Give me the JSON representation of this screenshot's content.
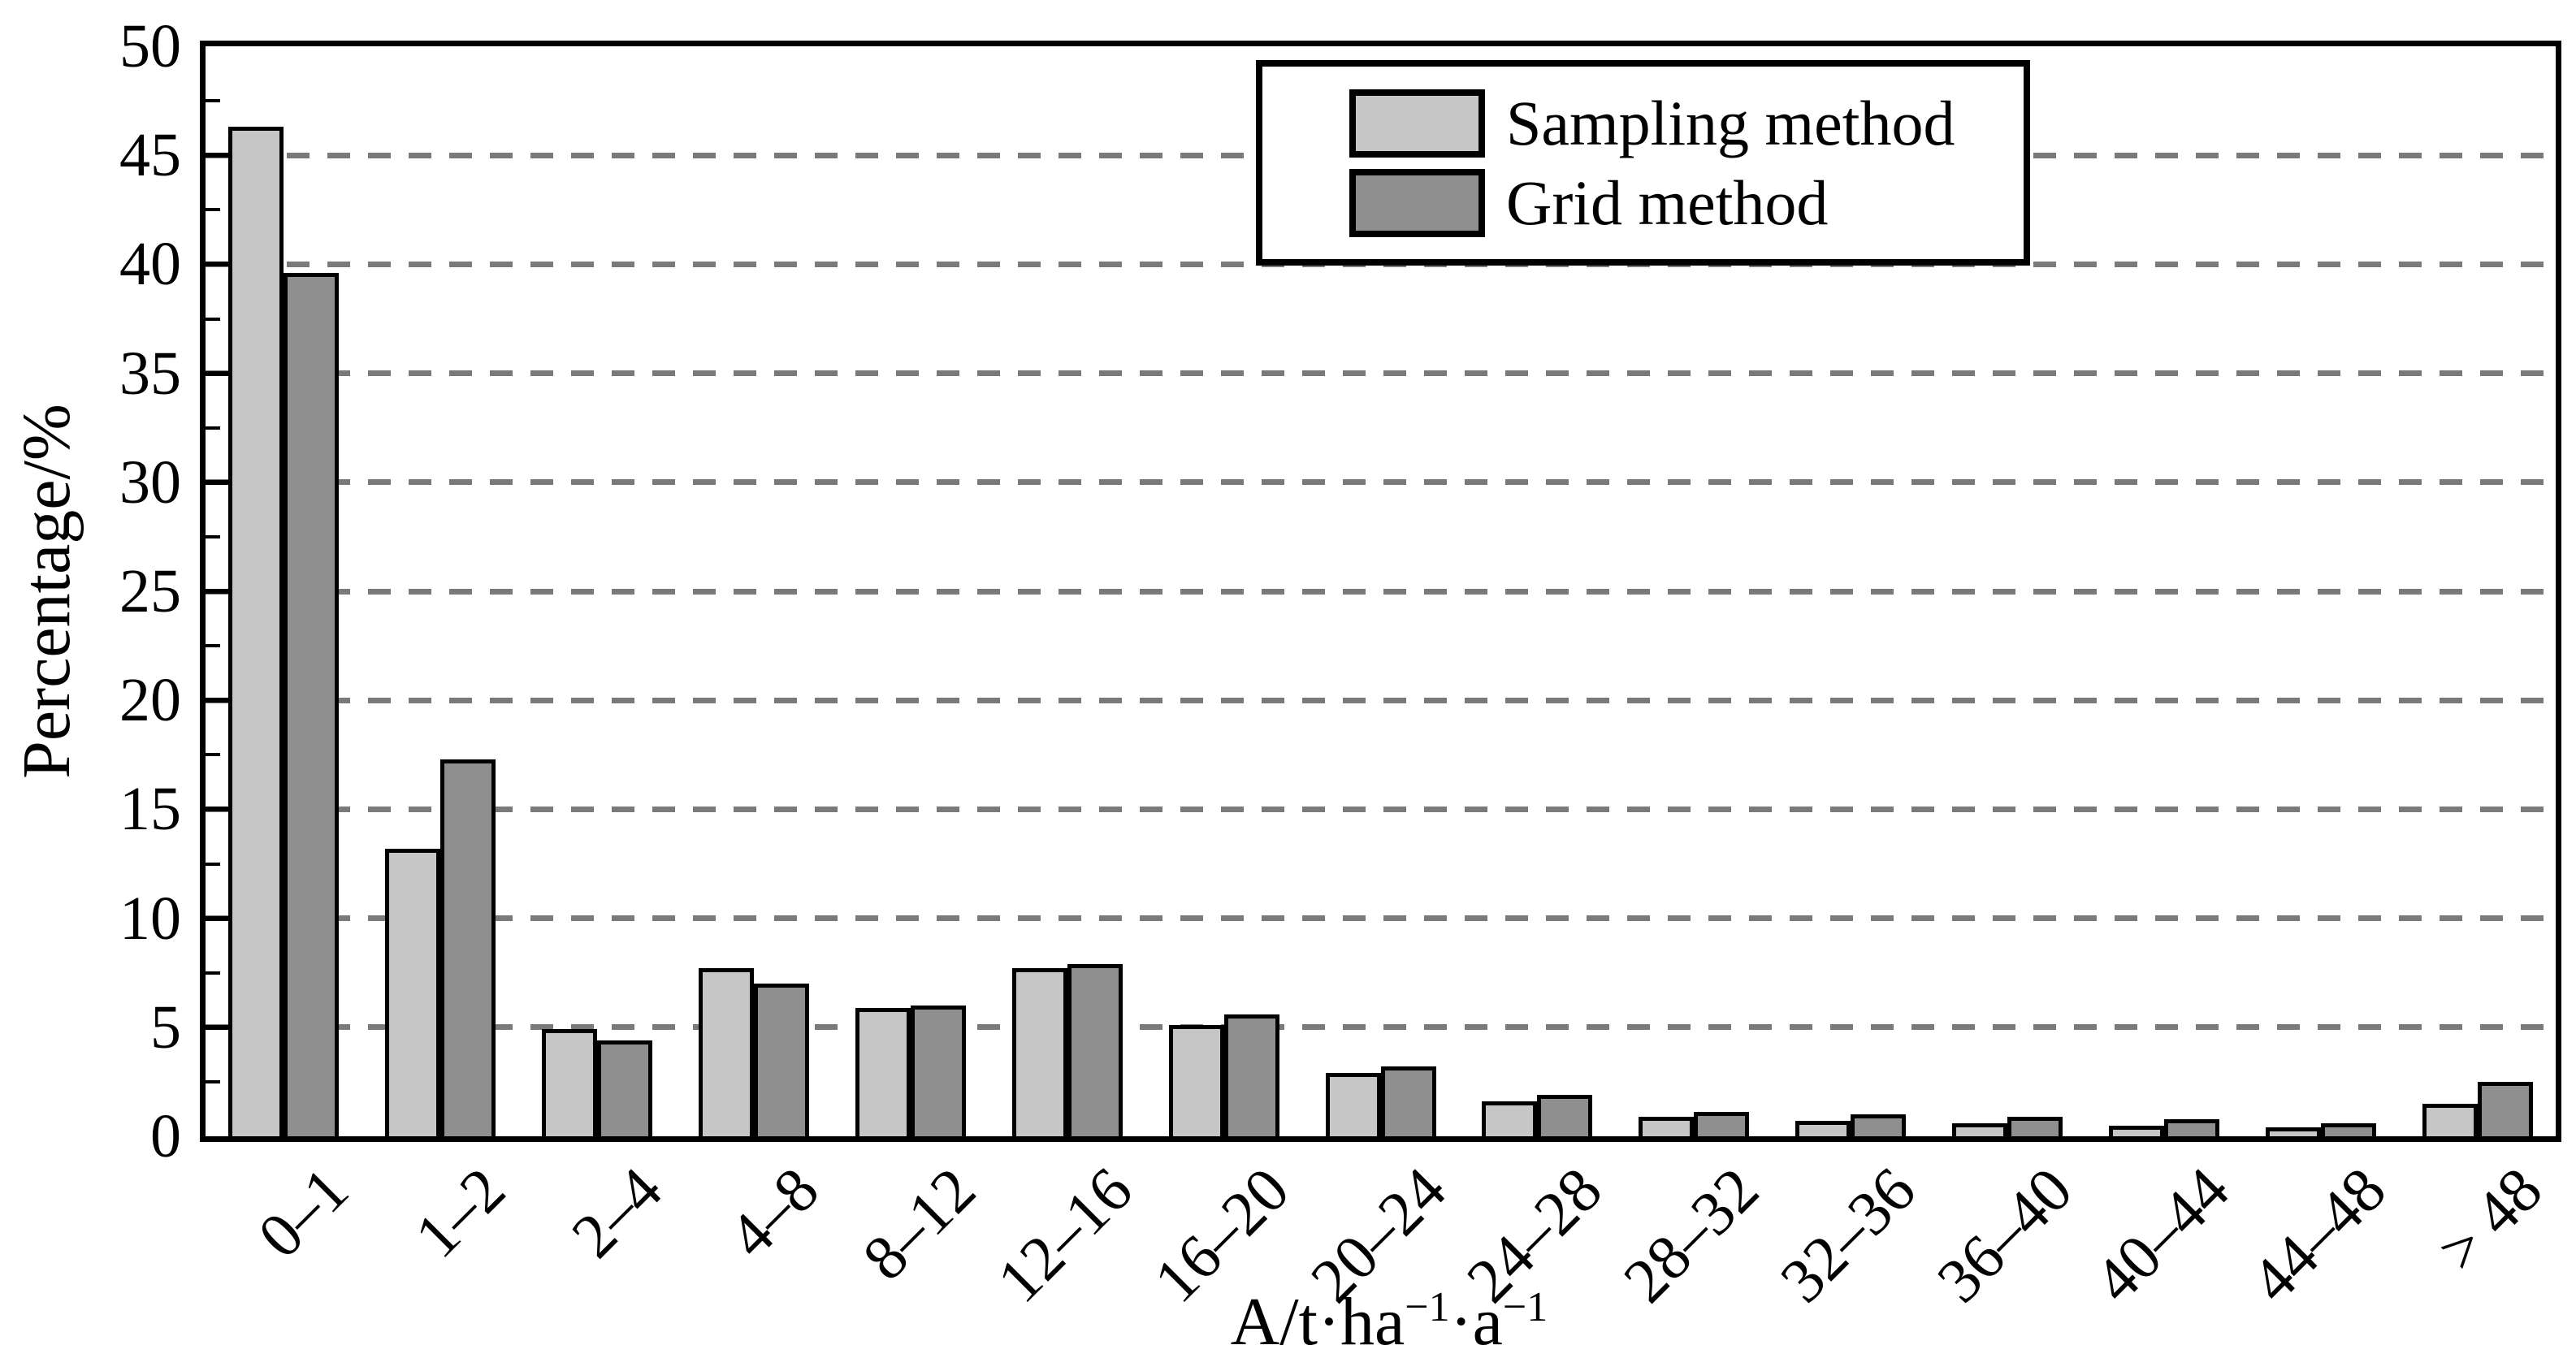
{
  "axes": {
    "y_title": "Percentage/%",
    "x_title": {
      "base1": "A/t·ha",
      "sup1": "−1",
      "base2": "·a",
      "sup2": "−1"
    }
  },
  "legend": {
    "items": [
      {
        "label": "Sampling method",
        "color": "#c6c6c6"
      },
      {
        "label": "Grid method",
        "color": "#8f8f8f"
      }
    ]
  },
  "chart_data": {
    "type": "bar",
    "title": "",
    "xlabel": "A/t·ha−1·a−1",
    "ylabel": "Percentage/%",
    "categories": [
      "0–1",
      "1–2",
      "2–4",
      "4–8",
      "8–12",
      "12–16",
      "16–20",
      "20–24",
      "24–28",
      "28–32",
      "32–36",
      "36–40",
      "40–44",
      "44–48",
      "> 48"
    ],
    "series": [
      {
        "name": "Sampling method",
        "color": "#c6c6c6",
        "values": [
          46.3,
          13.2,
          4.9,
          7.7,
          5.9,
          7.7,
          5.1,
          2.9,
          1.6,
          0.9,
          0.7,
          0.6,
          0.5,
          0.4,
          1.5
        ]
      },
      {
        "name": "Grid method",
        "color": "#8f8f8f",
        "values": [
          39.6,
          17.3,
          4.4,
          7.0,
          6.0,
          7.9,
          5.6,
          3.2,
          1.9,
          1.1,
          1.0,
          0.9,
          0.8,
          0.6,
          2.5
        ]
      }
    ],
    "ylim": [
      0,
      50
    ],
    "ytick_step": 5,
    "minor_ytick_step": 2.5,
    "grid": "horizontal-dashed",
    "gridline_color": "#7a7a7a",
    "bar_outline_color": "#000000",
    "legend_position": "upper-center-right"
  }
}
